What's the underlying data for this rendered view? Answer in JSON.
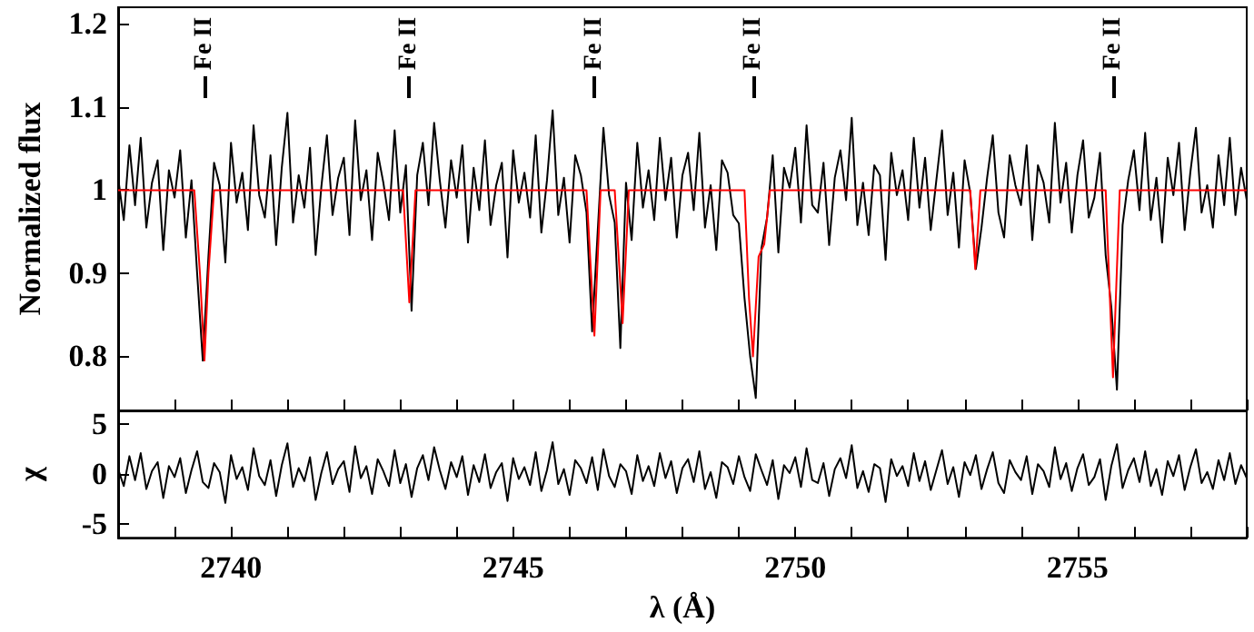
{
  "chart_data": [
    {
      "type": "line",
      "ylabel": "Normalized flux",
      "xlim": [
        2738,
        2758
      ],
      "ylim": [
        0.735,
        1.22
      ],
      "tick_labels": "y",
      "grid": false,
      "marker": "none",
      "line_style": "solid",
      "xticks": [
        2738,
        2739,
        2740,
        2741,
        2742,
        2743,
        2744,
        2745,
        2746,
        2747,
        2748,
        2749,
        2750,
        2751,
        2752,
        2753,
        2754,
        2755,
        2756,
        2757,
        2758
      ],
      "yticks": [
        0.8,
        0.9,
        1,
        1.1,
        1.2
      ],
      "ref_lines": [
        {
          "axis": "x",
          "value": 2739.53,
          "label": "Fe II"
        },
        {
          "axis": "x",
          "value": 2743.16,
          "label": "Fe II"
        },
        {
          "axis": "x",
          "value": 2746.44,
          "label": "Fe II"
        },
        {
          "axis": "x",
          "value": 2749.25,
          "label": "Fe II"
        },
        {
          "axis": "x",
          "value": 2755.63,
          "label": "Fe II"
        }
      ],
      "x": [
        2738,
        2738.1,
        2738.2,
        2738.3,
        2738.4,
        2738.5,
        2738.6,
        2738.7,
        2738.8,
        2738.9,
        2739,
        2739.1,
        2739.2,
        2739.3,
        2739.4,
        2739.5,
        2739.6,
        2739.7,
        2739.8,
        2739.9,
        2740,
        2740.1,
        2740.2,
        2740.3,
        2740.4,
        2740.5,
        2740.6,
        2740.7,
        2740.8,
        2740.9,
        2741,
        2741.1,
        2741.2,
        2741.3,
        2741.4,
        2741.5,
        2741.6,
        2741.7,
        2741.8,
        2741.9,
        2742,
        2742.1,
        2742.2,
        2742.3,
        2742.4,
        2742.5,
        2742.6,
        2742.7,
        2742.8,
        2742.9,
        2743,
        2743.1,
        2743.2,
        2743.3,
        2743.4,
        2743.5,
        2743.6,
        2743.7,
        2743.8,
        2743.9,
        2744,
        2744.1,
        2744.2,
        2744.3,
        2744.4,
        2744.5,
        2744.6,
        2744.7,
        2744.8,
        2744.9,
        2745,
        2745.1,
        2745.2,
        2745.3,
        2745.4,
        2745.5,
        2745.6,
        2745.7,
        2745.8,
        2745.9,
        2746,
        2746.1,
        2746.2,
        2746.3,
        2746.4,
        2746.5,
        2746.6,
        2746.7,
        2746.8,
        2746.9,
        2747,
        2747.1,
        2747.2,
        2747.3,
        2747.4,
        2747.5,
        2747.6,
        2747.7,
        2747.8,
        2747.9,
        2748,
        2748.1,
        2748.2,
        2748.3,
        2748.4,
        2748.5,
        2748.6,
        2748.7,
        2748.8,
        2748.9,
        2749,
        2749.1,
        2749.2,
        2749.3,
        2749.4,
        2749.5,
        2749.6,
        2749.7,
        2749.8,
        2749.9,
        2750,
        2750.1,
        2750.2,
        2750.3,
        2750.4,
        2750.5,
        2750.6,
        2750.7,
        2750.8,
        2750.9,
        2751,
        2751.1,
        2751.2,
        2751.3,
        2751.4,
        2751.5,
        2751.6,
        2751.7,
        2751.8,
        2751.9,
        2752,
        2752.1,
        2752.2,
        2752.3,
        2752.4,
        2752.5,
        2752.6,
        2752.7,
        2752.8,
        2752.9,
        2753,
        2753.1,
        2753.2,
        2753.3,
        2753.4,
        2753.5,
        2753.6,
        2753.7,
        2753.8,
        2753.9,
        2754,
        2754.1,
        2754.2,
        2754.3,
        2754.4,
        2754.5,
        2754.6,
        2754.7,
        2754.8,
        2754.9,
        2755,
        2755.1,
        2755.2,
        2755.3,
        2755.4,
        2755.5,
        2755.6,
        2755.7,
        2755.8,
        2755.9,
        2756,
        2756.1,
        2756.2,
        2756.3,
        2756.4,
        2756.5,
        2756.6,
        2756.7,
        2756.8,
        2756.9,
        2757,
        2757.1,
        2757.2,
        2757.3,
        2757.4,
        2757.5,
        2757.6,
        2757.7,
        2757.8,
        2757.9,
        2758
      ],
      "series": [
        {
          "color": "#000000",
          "values": [
            1.015,
            0.964,
            1.054,
            0.982,
            1.063,
            0.955,
            1.009,
            1.036,
            0.928,
            1.024,
            0.991,
            1.048,
            0.943,
            1.012,
            0.9,
            0.795,
            0.92,
            1.033,
            1.006,
            0.913,
            1.057,
            0.985,
            1.021,
            0.952,
            1.078,
            0.994,
            0.967,
            1.042,
            0.934,
            1.027,
            1.093,
            0.961,
            1.018,
            0.979,
            1.051,
            0.922,
            1.003,
            1.066,
            0.97,
            1.015,
            1.039,
            0.946,
            1.084,
            0.988,
            1.024,
            0.94,
            1.045,
            1.009,
            0.964,
            1.072,
            0.973,
            1.03,
            0.855,
            1.018,
            1.057,
            0.982,
            1.081,
            1.012,
            0.955,
            1.036,
            0.991,
            1.054,
            0.937,
            1.027,
            0.976,
            1.06,
            0.958,
            1.006,
            1.033,
            0.919,
            1.048,
            0.985,
            1.021,
            0.967,
            1.066,
            0.949,
            1.012,
            1.096,
            0.97,
            1.015,
            0.937,
            1.042,
            1.018,
            0.973,
            0.83,
            0.952,
            1.075,
            0.994,
            0.961,
            0.81,
            1.009,
            0.94,
            1.057,
            0.979,
            1.024,
            0.964,
            1.063,
            0.988,
            1.039,
            0.943,
            1.018,
            1.045,
            0.976,
            1.069,
            0.955,
            1.006,
            0.928,
            1.036,
            1.021,
            0.97,
            0.96,
            0.87,
            0.8,
            0.75,
            0.93,
            0.967,
            1.042,
            0.925,
            1.027,
            1.003,
            1.051,
            0.961,
            1.078,
            0.982,
            0.973,
            1.033,
            0.934,
            1.015,
            1.048,
            0.988,
            1.087,
            0.958,
            1.009,
            0.946,
            1.03,
            1.018,
            0.916,
            1.045,
            0.994,
            1.024,
            0.964,
            1.063,
            0.979,
            1.039,
            0.952,
            1.012,
            1.072,
            0.97,
            1.021,
            0.931,
            1.036,
            0.997,
            0.905,
            0.955,
            1.015,
            1.066,
            0.973,
            0.943,
            1.042,
            1.006,
            0.982,
            1.054,
            0.94,
            1.03,
            1.009,
            0.961,
            1.081,
            0.985,
            1.033,
            0.949,
            1.018,
            1.06,
            0.967,
            0.991,
            1.045,
            0.922,
            0.86,
            0.76,
            0.958,
            1.012,
            1.048,
            0.976,
            1.069,
            0.964,
            1.015,
            0.937,
            1.039,
            0.994,
            1.057,
            0.952,
            1.021,
            1.075,
            0.973,
            1.006,
            0.955,
            1.042,
            0.982,
            1.063,
            0.97,
            1.027,
            0.988
          ]
        },
        {
          "color": "#ff0000",
          "x": [
            2738,
            2739.35,
            2739.45,
            2739.53,
            2739.6,
            2739.7,
            2743.05,
            2743.16,
            2743.27,
            2746.3,
            2746.44,
            2746.55,
            2746.8,
            2746.94,
            2747.05,
            2749.1,
            2749.18,
            2749.25,
            2749.35,
            2749.45,
            2749.55,
            2753.1,
            2753.19,
            2753.28,
            2755.5,
            2755.63,
            2755.75,
            2758
          ],
          "values": [
            1,
            1,
            0.9,
            0.795,
            0.9,
            1,
            1,
            0.865,
            1,
            1,
            0.825,
            1,
            1,
            0.84,
            1,
            1,
            0.87,
            0.8,
            0.92,
            0.935,
            1,
            1,
            0.905,
            1,
            1,
            0.775,
            1,
            1
          ]
        }
      ]
    },
    {
      "type": "line",
      "ylabel": "χ",
      "xlabel": "λ (Å)",
      "xlim": [
        2738,
        2758
      ],
      "ylim": [
        -6.4,
        6.4
      ],
      "grid": false,
      "marker": "none",
      "line_style": "solid",
      "xticks": [
        {
          "value": 2738,
          "label": null
        },
        {
          "value": 2739,
          "label": null
        },
        2740,
        {
          "value": 2741,
          "label": null
        },
        {
          "value": 2742,
          "label": null
        },
        {
          "value": 2743,
          "label": null
        },
        {
          "value": 2744,
          "label": null
        },
        2745,
        {
          "value": 2746,
          "label": null
        },
        {
          "value": 2747,
          "label": null
        },
        {
          "value": 2748,
          "label": null
        },
        {
          "value": 2749,
          "label": null
        },
        2750,
        {
          "value": 2751,
          "label": null
        },
        {
          "value": 2752,
          "label": null
        },
        {
          "value": 2753,
          "label": null
        },
        {
          "value": 2754,
          "label": null
        },
        2755,
        {
          "value": 2756,
          "label": null
        },
        {
          "value": 2757,
          "label": null
        },
        {
          "value": 2758,
          "label": null
        }
      ],
      "yticks": [
        -5,
        0,
        5
      ],
      "x": [
        2738,
        2738.1,
        2738.2,
        2738.3,
        2738.4,
        2738.5,
        2738.6,
        2738.7,
        2738.8,
        2738.9,
        2739,
        2739.1,
        2739.2,
        2739.3,
        2739.4,
        2739.5,
        2739.6,
        2739.7,
        2739.8,
        2739.9,
        2740,
        2740.1,
        2740.2,
        2740.3,
        2740.4,
        2740.5,
        2740.6,
        2740.7,
        2740.8,
        2740.9,
        2741,
        2741.1,
        2741.2,
        2741.3,
        2741.4,
        2741.5,
        2741.6,
        2741.7,
        2741.8,
        2741.9,
        2742,
        2742.1,
        2742.2,
        2742.3,
        2742.4,
        2742.5,
        2742.6,
        2742.7,
        2742.8,
        2742.9,
        2743,
        2743.1,
        2743.2,
        2743.3,
        2743.4,
        2743.5,
        2743.6,
        2743.7,
        2743.8,
        2743.9,
        2744,
        2744.1,
        2744.2,
        2744.3,
        2744.4,
        2744.5,
        2744.6,
        2744.7,
        2744.8,
        2744.9,
        2745,
        2745.1,
        2745.2,
        2745.3,
        2745.4,
        2745.5,
        2745.6,
        2745.7,
        2745.8,
        2745.9,
        2746,
        2746.1,
        2746.2,
        2746.3,
        2746.4,
        2746.5,
        2746.6,
        2746.7,
        2746.8,
        2746.9,
        2747,
        2747.1,
        2747.2,
        2747.3,
        2747.4,
        2747.5,
        2747.6,
        2747.7,
        2747.8,
        2747.9,
        2748,
        2748.1,
        2748.2,
        2748.3,
        2748.4,
        2748.5,
        2748.6,
        2748.7,
        2748.8,
        2748.9,
        2749,
        2749.1,
        2749.2,
        2749.3,
        2749.4,
        2749.5,
        2749.6,
        2749.7,
        2749.8,
        2749.9,
        2750,
        2750.1,
        2750.2,
        2750.3,
        2750.4,
        2750.5,
        2750.6,
        2750.7,
        2750.8,
        2750.9,
        2751,
        2751.1,
        2751.2,
        2751.3,
        2751.4,
        2751.5,
        2751.6,
        2751.7,
        2751.8,
        2751.9,
        2752,
        2752.1,
        2752.2,
        2752.3,
        2752.4,
        2752.5,
        2752.6,
        2752.7,
        2752.8,
        2752.9,
        2753,
        2753.1,
        2753.2,
        2753.3,
        2753.4,
        2753.5,
        2753.6,
        2753.7,
        2753.8,
        2753.9,
        2754,
        2754.1,
        2754.2,
        2754.3,
        2754.4,
        2754.5,
        2754.6,
        2754.7,
        2754.8,
        2754.9,
        2755,
        2755.1,
        2755.2,
        2755.3,
        2755.4,
        2755.5,
        2755.6,
        2755.7,
        2755.8,
        2755.9,
        2756,
        2756.1,
        2756.2,
        2756.3,
        2756.4,
        2756.5,
        2756.6,
        2756.7,
        2756.8,
        2756.9,
        2757,
        2757.1,
        2757.2,
        2757.3,
        2757.4,
        2757.5,
        2757.6,
        2757.7,
        2757.8,
        2757.9,
        2758
      ],
      "series": [
        {
          "color": "#000000",
          "values": [
            0.5,
            -1.2,
            1.8,
            -0.6,
            2.1,
            -1.5,
            0.3,
            1.2,
            -2.4,
            0.8,
            -0.3,
            1.6,
            -1.9,
            0.4,
            2.3,
            -0.8,
            -1.4,
            1.1,
            0.2,
            -2.9,
            1.9,
            -0.5,
            0.7,
            -1.6,
            2.6,
            -0.2,
            -1.1,
            1.4,
            -2.2,
            0.9,
            3.1,
            -1.3,
            0.6,
            -0.7,
            1.7,
            -2.6,
            0.1,
            2.2,
            -1.0,
            0.5,
            1.3,
            -1.8,
            2.8,
            -0.4,
            0.8,
            -2.0,
            1.5,
            0.3,
            -1.2,
            2.4,
            -0.9,
            1.0,
            -2.3,
            0.6,
            1.9,
            -0.6,
            2.7,
            0.4,
            -1.5,
            1.2,
            -0.3,
            1.8,
            -2.1,
            0.9,
            -0.8,
            2.0,
            -1.4,
            0.2,
            1.1,
            -2.7,
            1.6,
            -0.5,
            0.7,
            -1.1,
            2.2,
            -1.7,
            0.4,
            3.2,
            -1.0,
            0.5,
            -2.1,
            1.4,
            0.6,
            -0.9,
            1.7,
            -1.6,
            2.5,
            -0.2,
            -1.3,
            1.0,
            0.3,
            -2.0,
            1.9,
            -0.7,
            0.8,
            -1.2,
            2.1,
            -0.4,
            1.3,
            -1.9,
            0.6,
            1.5,
            -0.8,
            2.3,
            -1.5,
            0.2,
            -2.4,
            1.2,
            0.7,
            -1.0,
            1.8,
            -0.3,
            -1.7,
            2.0,
            0.4,
            -1.1,
            1.4,
            -2.5,
            0.9,
            0.1,
            1.7,
            -1.3,
            2.6,
            -0.6,
            -0.9,
            1.1,
            -2.2,
            0.5,
            1.6,
            -0.4,
            2.9,
            -1.4,
            0.3,
            -1.8,
            1.0,
            0.6,
            -2.8,
            1.5,
            -0.2,
            0.8,
            -1.2,
            2.1,
            -0.7,
            1.3,
            -1.6,
            0.4,
            2.4,
            -1.0,
            0.7,
            -2.3,
            1.2,
            -0.1,
            1.9,
            -1.5,
            0.5,
            2.2,
            -0.9,
            -1.9,
            1.4,
            0.2,
            -0.6,
            1.8,
            -2.0,
            1.0,
            0.3,
            -1.3,
            2.7,
            -0.5,
            1.1,
            -1.7,
            0.6,
            2.0,
            -1.1,
            -0.3,
            1.5,
            -2.6,
            0.8,
            3.0,
            -1.4,
            0.4,
            1.6,
            -0.8,
            2.3,
            -1.2,
            0.5,
            -2.1,
            1.3,
            -0.2,
            1.9,
            -1.6,
            0.7,
            2.5,
            -0.9,
            0.2,
            -1.5,
            1.4,
            -0.6,
            2.1,
            -1.0,
            0.9,
            -0.4
          ]
        }
      ]
    }
  ]
}
